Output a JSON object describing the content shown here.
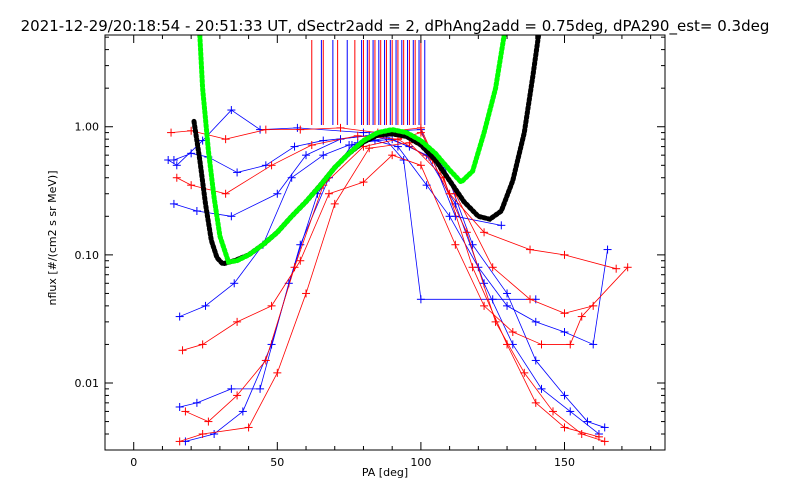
{
  "chart_data": {
    "type": "scatter",
    "title": "2021-12-29/20:18:54 - 20:51:33 UT, dSectr2add = 2, dPhAng2add = 0.75deg, dPA290_est=   0.3deg",
    "xlabel": "PA [deg]",
    "ylabel": "nflux [#/(cm2 s sr MeV)]",
    "xlim": [
      -10,
      185
    ],
    "ylim": [
      0.003,
      5.2
    ],
    "y_scale": "log",
    "x_ticks": [
      "0",
      "50",
      "100",
      "150"
    ],
    "y_ticks": [
      "0.01",
      "0.10",
      "1.00"
    ],
    "grid": false,
    "colors": {
      "red": "#ff0000",
      "blue": "#0000ff",
      "green": "#00ff00",
      "black": "#000000"
    },
    "series": [
      {
        "color": "blue",
        "points": [
          [
            12,
            0.55
          ],
          [
            15,
            0.5
          ],
          [
            24,
            0.78
          ],
          [
            34,
            1.35
          ],
          [
            44,
            0.95
          ],
          [
            57,
            0.98
          ],
          [
            80,
            0.9
          ],
          [
            100,
            0.95
          ],
          [
            112,
            0.2
          ],
          [
            128,
            0.17
          ],
          [
            14,
            0.25
          ],
          [
            22,
            0.22
          ],
          [
            34,
            0.2
          ],
          [
            50,
            0.3
          ],
          [
            60,
            0.6
          ],
          [
            72,
            0.8
          ],
          [
            86,
            0.88
          ],
          [
            94,
            0.55
          ],
          [
            100,
            0.045
          ],
          [
            125,
            0.045
          ],
          [
            140,
            0.045
          ],
          [
            16,
            0.0065
          ],
          [
            22,
            0.007
          ],
          [
            34,
            0.009
          ],
          [
            44,
            0.009
          ],
          [
            54,
            0.06
          ],
          [
            64,
            0.3
          ],
          [
            76,
            0.72
          ],
          [
            88,
            0.82
          ],
          [
            96,
            0.7
          ],
          [
            108,
            0.5
          ],
          [
            118,
            0.12
          ],
          [
            130,
            0.05
          ],
          [
            140,
            0.015
          ],
          [
            150,
            0.008
          ],
          [
            158,
            0.005
          ],
          [
            164,
            0.0045
          ],
          [
            18,
            0.0035
          ],
          [
            28,
            0.004
          ],
          [
            38,
            0.006
          ],
          [
            48,
            0.02
          ],
          [
            58,
            0.12
          ],
          [
            68,
            0.4
          ],
          [
            78,
            0.75
          ],
          [
            90,
            0.8
          ],
          [
            102,
            0.6
          ],
          [
            112,
            0.25
          ],
          [
            122,
            0.06
          ],
          [
            132,
            0.02
          ],
          [
            142,
            0.009
          ],
          [
            152,
            0.006
          ],
          [
            162,
            0.004
          ],
          [
            16,
            0.033
          ],
          [
            25,
            0.04
          ],
          [
            35,
            0.06
          ],
          [
            45,
            0.12
          ],
          [
            55,
            0.4
          ],
          [
            66,
            0.6
          ],
          [
            75,
            0.72
          ],
          [
            84,
            0.78
          ],
          [
            92,
            0.7
          ],
          [
            102,
            0.35
          ],
          [
            110,
            0.2
          ],
          [
            120,
            0.08
          ],
          [
            130,
            0.04
          ],
          [
            140,
            0.03
          ],
          [
            150,
            0.025
          ],
          [
            160,
            0.02
          ],
          [
            165,
            0.11
          ],
          [
            14,
            0.55
          ],
          [
            20,
            0.62
          ],
          [
            26,
            0.58
          ],
          [
            36,
            0.44
          ],
          [
            46,
            0.5
          ],
          [
            56,
            0.7
          ],
          [
            66,
            0.78
          ],
          [
            82,
            0.85
          ]
        ]
      },
      {
        "color": "red",
        "points": [
          [
            13,
            0.9
          ],
          [
            20,
            0.93
          ],
          [
            32,
            0.8
          ],
          [
            46,
            0.95
          ],
          [
            58,
            0.95
          ],
          [
            72,
            0.98
          ],
          [
            85,
            0.9
          ],
          [
            100,
            0.98
          ],
          [
            110,
            0.3
          ],
          [
            122,
            0.15
          ],
          [
            138,
            0.11
          ],
          [
            150,
            0.1
          ],
          [
            168,
            0.078
          ],
          [
            15,
            0.4
          ],
          [
            20,
            0.35
          ],
          [
            32,
            0.3
          ],
          [
            48,
            0.5
          ],
          [
            62,
            0.72
          ],
          [
            78,
            0.85
          ],
          [
            92,
            0.8
          ],
          [
            100,
            0.9
          ],
          [
            112,
            0.3
          ],
          [
            125,
            0.08
          ],
          [
            138,
            0.045
          ],
          [
            150,
            0.035
          ],
          [
            160,
            0.04
          ],
          [
            18,
            0.006
          ],
          [
            26,
            0.005
          ],
          [
            36,
            0.008
          ],
          [
            46,
            0.015
          ],
          [
            56,
            0.08
          ],
          [
            66,
            0.35
          ],
          [
            80,
            0.7
          ],
          [
            92,
            0.8
          ],
          [
            104,
            0.55
          ],
          [
            116,
            0.15
          ],
          [
            126,
            0.03
          ],
          [
            136,
            0.012
          ],
          [
            146,
            0.006
          ],
          [
            156,
            0.004
          ],
          [
            164,
            0.0035
          ],
          [
            16,
            0.0035
          ],
          [
            24,
            0.004
          ],
          [
            40,
            0.0045
          ],
          [
            50,
            0.012
          ],
          [
            60,
            0.05
          ],
          [
            70,
            0.25
          ],
          [
            82,
            0.68
          ],
          [
            96,
            0.75
          ],
          [
            108,
            0.4
          ],
          [
            118,
            0.08
          ],
          [
            130,
            0.02
          ],
          [
            140,
            0.007
          ],
          [
            150,
            0.0045
          ],
          [
            162,
            0.0038
          ],
          [
            17,
            0.018
          ],
          [
            24,
            0.02
          ],
          [
            36,
            0.03
          ],
          [
            48,
            0.04
          ],
          [
            58,
            0.09
          ],
          [
            68,
            0.3
          ],
          [
            80,
            0.37
          ],
          [
            90,
            0.6
          ],
          [
            100,
            0.5
          ],
          [
            112,
            0.12
          ],
          [
            122,
            0.04
          ],
          [
            132,
            0.025
          ],
          [
            142,
            0.02
          ],
          [
            152,
            0.02
          ],
          [
            156,
            0.033
          ],
          [
            172,
            0.08
          ]
        ]
      },
      {
        "color": "green",
        "points": [
          [
            23,
            5.2
          ],
          [
            24,
            2.0
          ],
          [
            25,
            1.15
          ],
          [
            26,
            0.65
          ],
          [
            28,
            0.28
          ],
          [
            30,
            0.14
          ],
          [
            33,
            0.088
          ],
          [
            36,
            0.09
          ],
          [
            40,
            0.1
          ],
          [
            45,
            0.12
          ],
          [
            50,
            0.15
          ],
          [
            55,
            0.2
          ],
          [
            60,
            0.26
          ],
          [
            65,
            0.35
          ],
          [
            70,
            0.48
          ],
          [
            75,
            0.62
          ],
          [
            80,
            0.78
          ],
          [
            85,
            0.9
          ],
          [
            90,
            0.95
          ],
          [
            95,
            0.9
          ],
          [
            100,
            0.78
          ],
          [
            105,
            0.62
          ],
          [
            110,
            0.46
          ],
          [
            114,
            0.37
          ],
          [
            118,
            0.45
          ],
          [
            122,
            0.9
          ],
          [
            126,
            2.0
          ],
          [
            129,
            5.2
          ]
        ]
      },
      {
        "color": "black",
        "points": [
          [
            21,
            1.1
          ],
          [
            23,
            0.55
          ],
          [
            25,
            0.25
          ],
          [
            27,
            0.13
          ],
          [
            29,
            0.095
          ],
          [
            31,
            0.085
          ],
          [
            35,
            0.09
          ],
          [
            40,
            0.1
          ],
          [
            45,
            0.12
          ],
          [
            50,
            0.15
          ],
          [
            55,
            0.2
          ],
          [
            60,
            0.26
          ],
          [
            65,
            0.35
          ],
          [
            70,
            0.48
          ],
          [
            75,
            0.62
          ],
          [
            80,
            0.76
          ],
          [
            85,
            0.86
          ],
          [
            90,
            0.88
          ],
          [
            95,
            0.84
          ],
          [
            100,
            0.72
          ],
          [
            105,
            0.55
          ],
          [
            110,
            0.38
          ],
          [
            115,
            0.26
          ],
          [
            120,
            0.2
          ],
          [
            124,
            0.19
          ],
          [
            128,
            0.22
          ],
          [
            132,
            0.38
          ],
          [
            136,
            0.9
          ],
          [
            139,
            2.5
          ],
          [
            141,
            5.2
          ]
        ]
      }
    ],
    "rug_red_x": [
      62,
      66,
      71,
      77,
      80,
      82,
      84,
      86,
      88,
      90,
      92,
      94,
      96,
      98,
      100
    ],
    "rug_blue_x": [
      65,
      69,
      74,
      79,
      81,
      83,
      85,
      87,
      89,
      91,
      93,
      95,
      97,
      99,
      101
    ]
  }
}
